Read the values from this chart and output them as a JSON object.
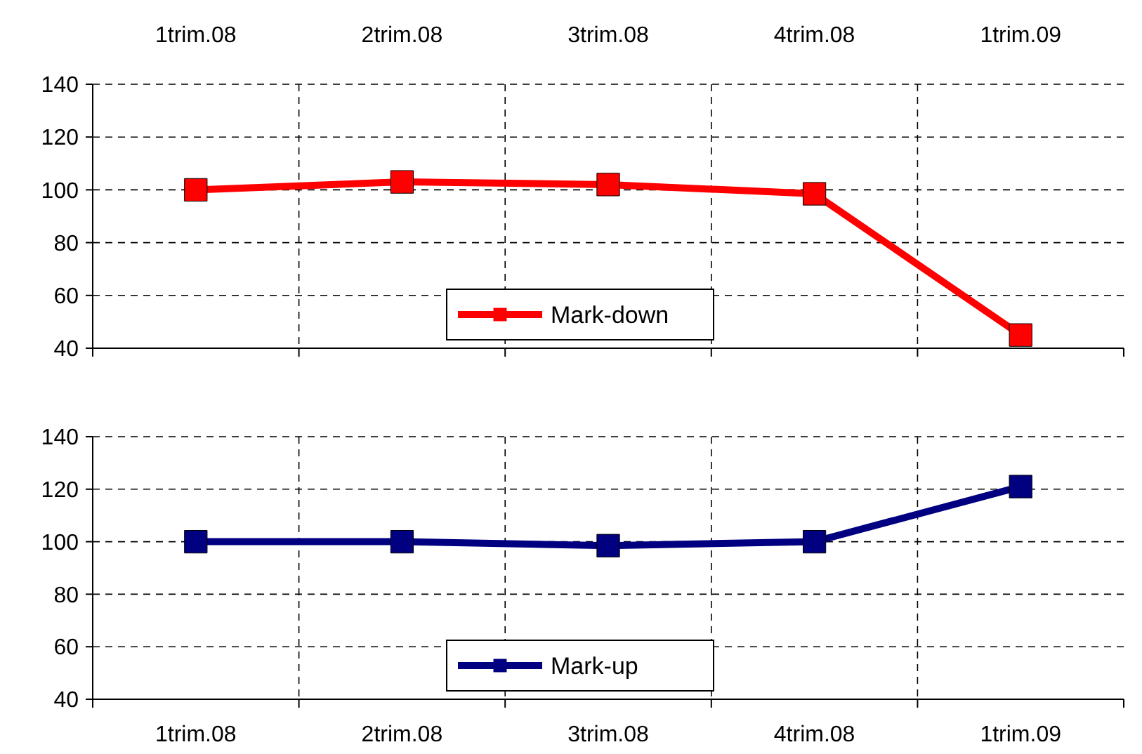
{
  "chart_data": [
    {
      "type": "line",
      "categories": [
        "1trim.08",
        "2trim.08",
        "3trim.08",
        "4trim.08",
        "1trim.09"
      ],
      "series": [
        {
          "name": "Mark-down",
          "color": "#ff0000",
          "values": [
            100,
            103,
            102,
            98.5,
            45
          ]
        }
      ],
      "ylim": [
        40,
        140
      ],
      "yticks": [
        40,
        60,
        80,
        100,
        120,
        140
      ],
      "grid": true,
      "legend": "bottom",
      "marker": "square",
      "line_style": "solid"
    },
    {
      "type": "line",
      "categories": [
        "1trim.08",
        "2trim.08",
        "3trim.08",
        "4trim.08",
        "1trim.09"
      ],
      "series": [
        {
          "name": "Mark-up",
          "color": "#000080",
          "values": [
            100,
            100,
            98.5,
            100,
            121
          ]
        }
      ],
      "ylim": [
        40,
        140
      ],
      "yticks": [
        40,
        60,
        80,
        100,
        120,
        140
      ],
      "grid": true,
      "legend": "bottom",
      "marker": "square",
      "line_style": "solid"
    }
  ]
}
